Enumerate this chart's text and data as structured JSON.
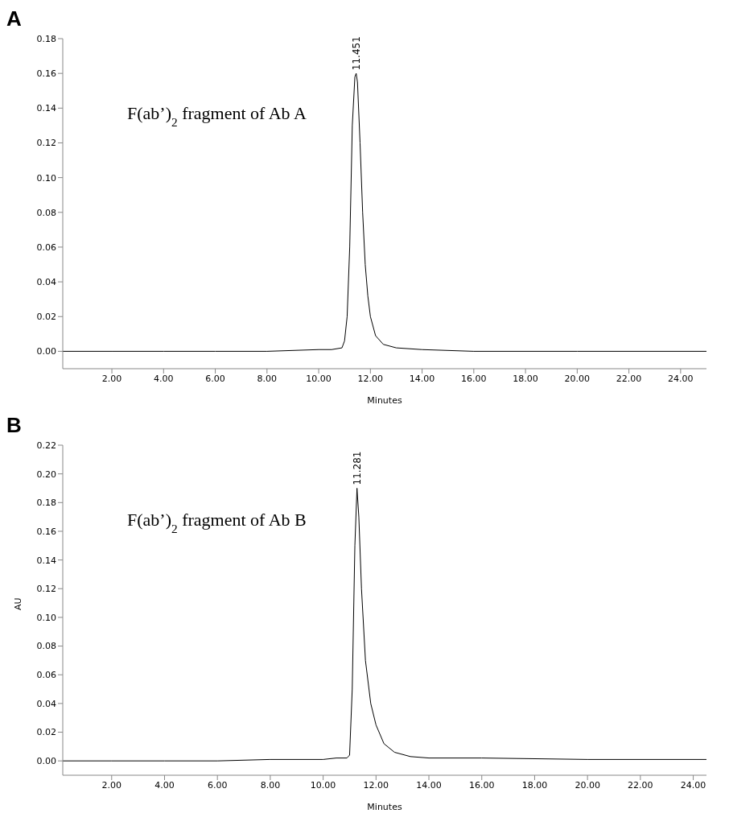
{
  "chart_data": [
    {
      "type": "line",
      "title": "A",
      "xlabel": "Minutes",
      "color": "#000000",
      "marker": "none",
      "annotations": [
        "F(ab’)$_{2}$ fragment of Ab A",
        {
          "text": "11.451",
          "x": 11.45,
          "y": 0.16
        }
      ],
      "xlim": [
        0.1,
        25
      ],
      "ylim": [
        -0.01,
        0.18
      ],
      "xticks": [
        {
          "value": 2,
          "label": "2.00"
        },
        {
          "value": 4,
          "label": "4.00"
        },
        {
          "value": 6,
          "label": "6.00"
        },
        {
          "value": 8,
          "label": "8.00"
        },
        {
          "value": 10,
          "label": "10.00"
        },
        {
          "value": 12,
          "label": "12.00"
        },
        {
          "value": 14,
          "label": "14.00"
        },
        {
          "value": 16,
          "label": "16.00"
        },
        {
          "value": 18,
          "label": "18.00"
        },
        {
          "value": 20,
          "label": "20.00"
        },
        {
          "value": 22,
          "label": "22.00"
        },
        {
          "value": 24,
          "label": "24.00"
        }
      ],
      "yticks": [
        {
          "value": 0,
          "label": "0.00"
        },
        {
          "value": 0.02,
          "label": "0.02"
        },
        {
          "value": 0.04,
          "label": "0.04"
        },
        {
          "value": 0.06,
          "label": "0.06"
        },
        {
          "value": 0.08,
          "label": "0.08"
        },
        {
          "value": 0.1,
          "label": "0.10"
        },
        {
          "value": 0.12,
          "label": "0.12"
        },
        {
          "value": 0.14,
          "label": "0.14"
        },
        {
          "value": 0.16,
          "label": "0.16"
        },
        {
          "value": 0.18,
          "label": "0.18"
        }
      ],
      "x": [
        0.1,
        2,
        4,
        6,
        8,
        10,
        10.5,
        10.9,
        11.0,
        11.1,
        11.2,
        11.3,
        11.4,
        11.45,
        11.5,
        11.6,
        11.7,
        11.8,
        11.9,
        12.0,
        12.2,
        12.5,
        13,
        14,
        16,
        20,
        25
      ],
      "values": [
        0,
        0,
        0,
        0,
        0,
        0.001,
        0.001,
        0.002,
        0.006,
        0.02,
        0.06,
        0.13,
        0.158,
        0.16,
        0.155,
        0.12,
        0.08,
        0.05,
        0.032,
        0.02,
        0.009,
        0.004,
        0.002,
        0.001,
        0,
        0,
        0
      ]
    },
    {
      "type": "line",
      "title": "B",
      "xlabel": "Minutes",
      "ylabel": "AU",
      "color": "#000000",
      "marker": "none",
      "annotations": [
        "F(ab’)$_{2}$ fragment of Ab B",
        {
          "text": "11.281",
          "x": 11.28,
          "y": 0.19
        }
      ],
      "xlim": [
        0.15,
        24.5
      ],
      "ylim": [
        -0.01,
        0.22
      ],
      "xticks": [
        {
          "value": 2,
          "label": "2.00"
        },
        {
          "value": 4,
          "label": "4.00"
        },
        {
          "value": 6,
          "label": "6.00"
        },
        {
          "value": 8,
          "label": "8.00"
        },
        {
          "value": 10,
          "label": "10.00"
        },
        {
          "value": 12,
          "label": "12.00"
        },
        {
          "value": 14,
          "label": "14.00"
        },
        {
          "value": 16,
          "label": "16.00"
        },
        {
          "value": 18,
          "label": "18.00"
        },
        {
          "value": 20,
          "label": "20.00"
        },
        {
          "value": 22,
          "label": "22.00"
        },
        {
          "value": 24,
          "label": "24.00"
        }
      ],
      "yticks": [
        {
          "value": 0,
          "label": "0.00"
        },
        {
          "value": 0.02,
          "label": "0.02"
        },
        {
          "value": 0.04,
          "label": "0.04"
        },
        {
          "value": 0.06,
          "label": "0.06"
        },
        {
          "value": 0.08,
          "label": "0.08"
        },
        {
          "value": 0.1,
          "label": "0.10"
        },
        {
          "value": 0.12,
          "label": "0.12"
        },
        {
          "value": 0.14,
          "label": "0.14"
        },
        {
          "value": 0.16,
          "label": "0.16"
        },
        {
          "value": 0.18,
          "label": "0.18"
        },
        {
          "value": 0.2,
          "label": "0.20"
        },
        {
          "value": 0.22,
          "label": "0.22"
        }
      ],
      "x": [
        0.15,
        2,
        4,
        6,
        8,
        10,
        10.5,
        10.9,
        11.0,
        11.1,
        11.2,
        11.28,
        11.35,
        11.45,
        11.6,
        11.8,
        12.0,
        12.3,
        12.7,
        13.3,
        14,
        16,
        20,
        24.5
      ],
      "values": [
        0,
        0,
        0,
        0,
        0.001,
        0.001,
        0.002,
        0.002,
        0.004,
        0.05,
        0.15,
        0.19,
        0.17,
        0.12,
        0.07,
        0.04,
        0.025,
        0.012,
        0.006,
        0.003,
        0.002,
        0.002,
        0.001,
        0.001
      ]
    }
  ]
}
